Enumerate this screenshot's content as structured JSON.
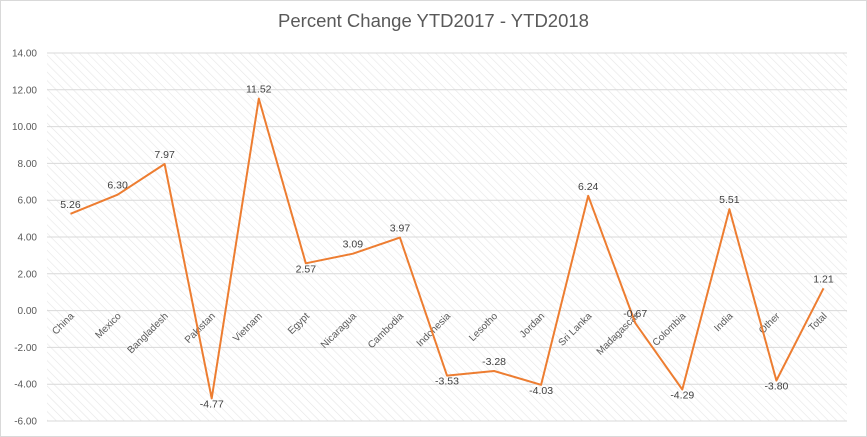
{
  "chart_data": {
    "type": "line",
    "title": "Percent Change YTD2017 - YTD2018",
    "xlabel": "",
    "ylabel": "",
    "categories": [
      "China",
      "Mexico",
      "Bangladesh",
      "Pakistan",
      "Vietnam",
      "Egypt",
      "Nicaragua",
      "Cambodia",
      "Indonesia",
      "Lesotho",
      "Jordan",
      "Sri Lanka",
      "Madagascar",
      "Colombia",
      "India",
      "Other",
      "Total"
    ],
    "values": [
      5.26,
      6.3,
      7.97,
      -4.77,
      11.52,
      2.57,
      3.09,
      3.97,
      -3.53,
      -3.28,
      -4.03,
      6.24,
      -0.67,
      -4.29,
      5.51,
      -3.8,
      1.21
    ],
    "value_labels": [
      "5.26",
      "6.30",
      "7.97",
      "-4.77",
      "11.52",
      "2.57",
      "3.09",
      "3.97",
      "-3.53",
      "-3.28",
      "-4.03",
      "6.24",
      "-0.67",
      "-4.29",
      "5.51",
      "-3.80",
      "1.21"
    ],
    "ylim": [
      -6,
      14
    ],
    "y_ticks": [
      14,
      12,
      10,
      8,
      6,
      4,
      2,
      0,
      -2,
      -4,
      -6
    ],
    "y_tick_labels": [
      "14.00",
      "12.00",
      "10.00",
      "8.00",
      "6.00",
      "4.00",
      "2.00",
      "0.00",
      "-2.00",
      "-4.00",
      "-6.00"
    ],
    "grid": true,
    "legend": "none",
    "line_color": "#ed7d31"
  }
}
